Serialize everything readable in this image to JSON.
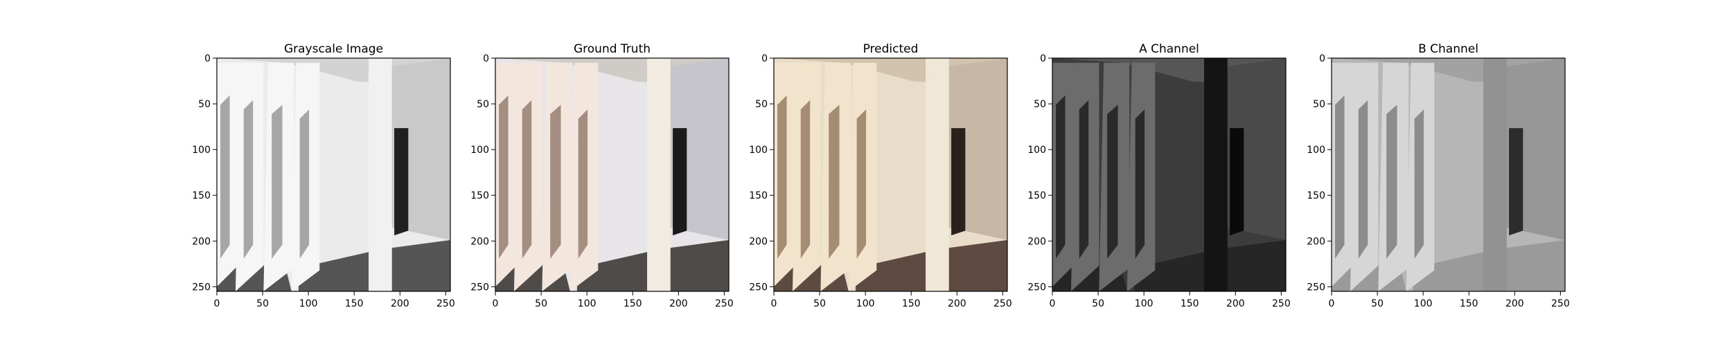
{
  "figure": {
    "panels": [
      {
        "title": "Grayscale Image",
        "image": {
          "wall": "#ebebeb",
          "ceiling": "#d3d3d3",
          "floor": "#555555",
          "pillar_light": "#f6f6f6",
          "pillar_shadow": "#a6a6a6",
          "column": "#f1f1f1",
          "door": "#202020",
          "right_wall": "#c9c9c9"
        }
      },
      {
        "title": "Ground Truth",
        "image": {
          "wall": "#e7e5e8",
          "ceiling": "#cfcbc7",
          "floor": "#4f4b48",
          "pillar_light": "#f3e6dc",
          "pillar_shadow": "#a48e82",
          "column": "#f1ebe2",
          "door": "#1d1b1a",
          "right_wall": "#c7c5cc"
        }
      },
      {
        "title": "Predicted",
        "image": {
          "wall": "#e9ddc9",
          "ceiling": "#d1c3ad",
          "floor": "#5e4a40",
          "pillar_light": "#f2e4cc",
          "pillar_shadow": "#a48d72",
          "column": "#efe8d6",
          "door": "#2a211c",
          "right_wall": "#c6b8a4"
        }
      },
      {
        "title": "A Channel",
        "image": {
          "wall": "#3c3c3c",
          "ceiling": "#565656",
          "floor": "#262626",
          "pillar_light": "#6c6c6c",
          "pillar_shadow": "#2a2a2a",
          "column": "#141414",
          "door": "#0a0a0a",
          "right_wall": "#4a4a4a"
        }
      },
      {
        "title": "B Channel",
        "image": {
          "wall": "#b6b6b6",
          "ceiling": "#a2a2a2",
          "floor": "#9a9a9a",
          "pillar_light": "#d6d6d6",
          "pillar_shadow": "#8c8c8c",
          "column": "#929292",
          "door": "#2c2c2c",
          "right_wall": "#979797"
        }
      }
    ],
    "x_ticks": [
      "0",
      "50",
      "100",
      "150",
      "200",
      "250"
    ],
    "y_ticks": [
      "0",
      "50",
      "100",
      "150",
      "200",
      "250"
    ],
    "axis_range": [
      0,
      255
    ]
  }
}
